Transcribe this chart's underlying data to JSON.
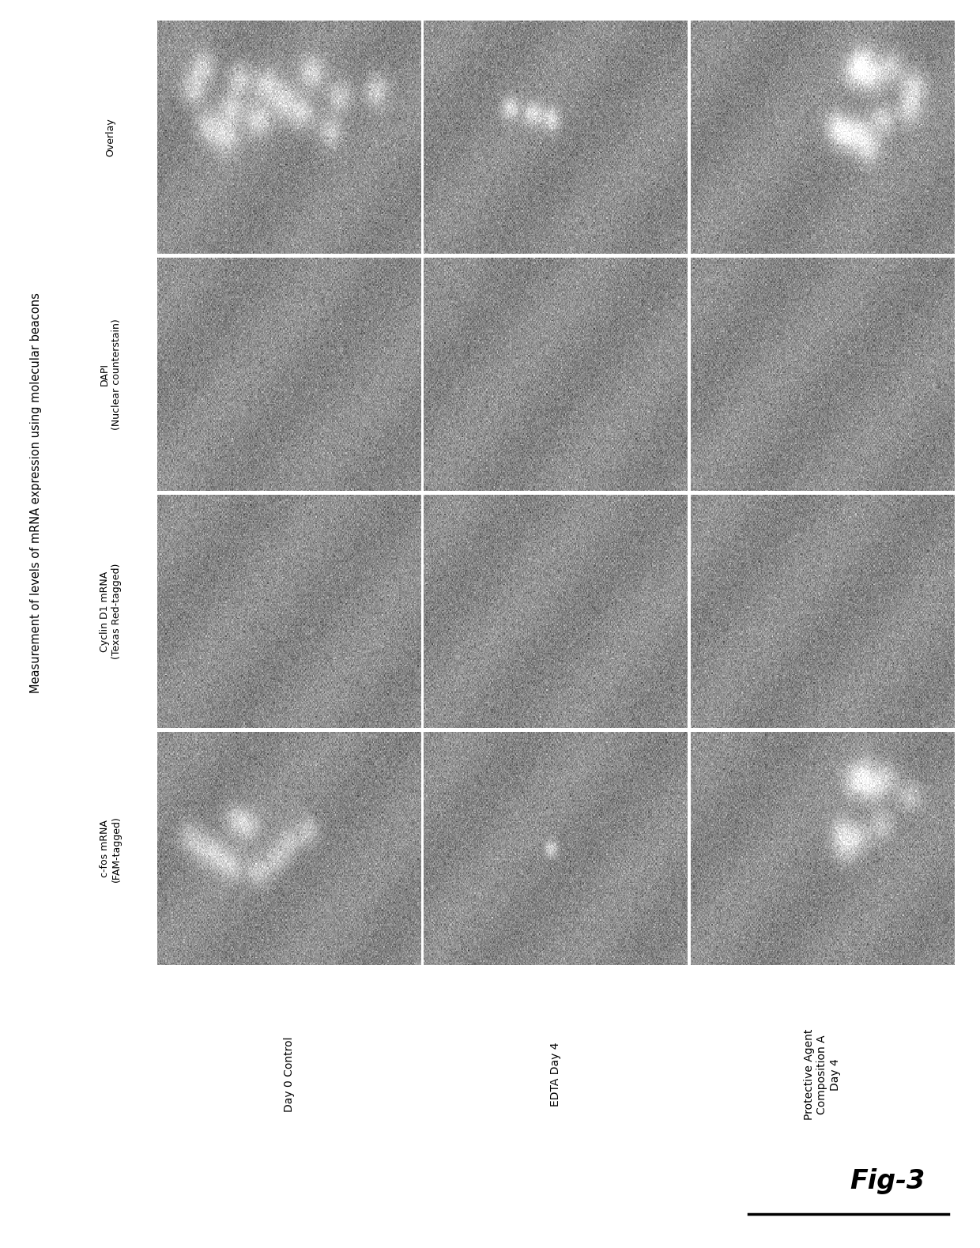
{
  "title": "Measurement of levels of mRNA expression using molecular beacons",
  "row_labels": [
    "Overlay",
    "DAPI\n(Nuclear counterstain)",
    "Cyclin D1 mRNA\n(Texas Red-tagged)",
    "c-fos mRNA\n(FAM-tagged)"
  ],
  "col_labels": [
    "Day 0 Control",
    "EDTA Day 4",
    "Protective Agent\nComposition A\nDay 4"
  ],
  "fig_label": "Fig-3",
  "figure_bg": "#ffffff",
  "title_fontsize": 10.5,
  "row_label_fontsize": 9,
  "col_label_fontsize": 10,
  "fig_label_fontsize": 24,
  "img_bg_mean": 140,
  "img_bg_std": 18
}
